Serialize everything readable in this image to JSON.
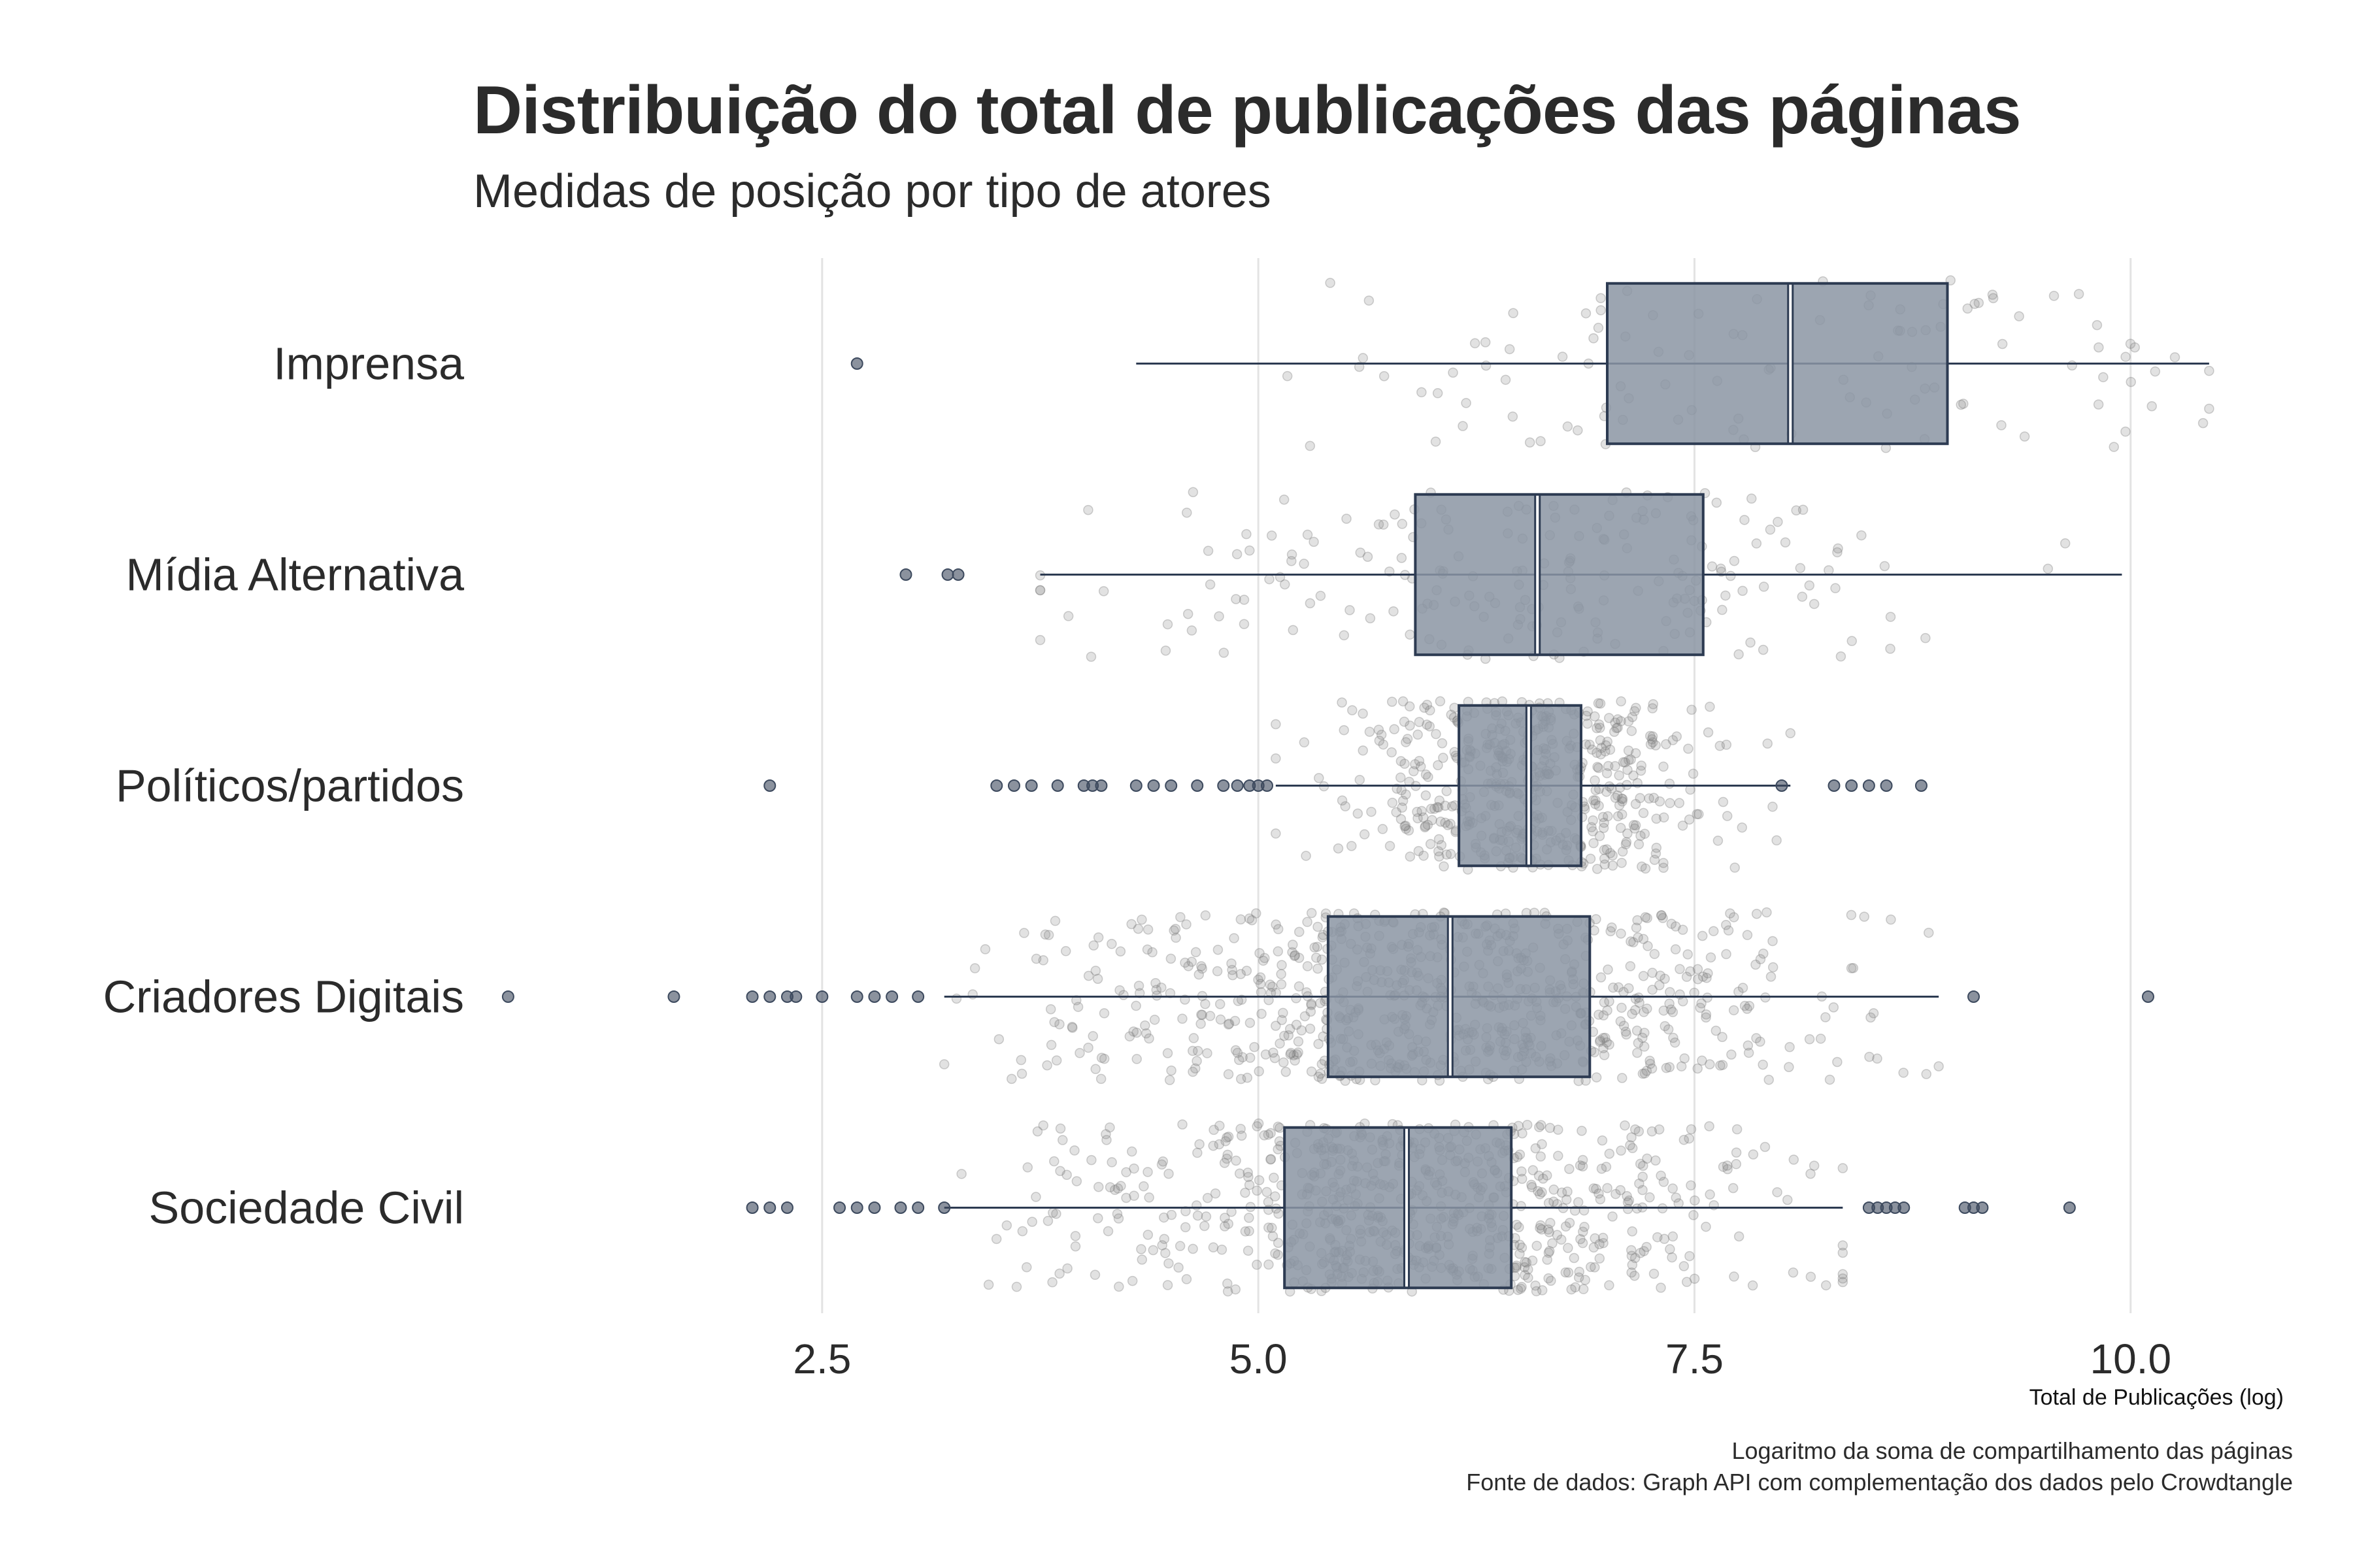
{
  "chart_data": {
    "type": "boxplot",
    "title": "Distribuição do total de publicações das páginas",
    "subtitle": "Medidas de posição por tipo de atores",
    "xlabel": "Total de Publicações (log)",
    "ylabel": "",
    "xlim": [
      0.5,
      10.9
    ],
    "x_ticks": [
      2.5,
      5.0,
      7.5,
      10.0
    ],
    "x_tick_labels": [
      "2.5",
      "5.0",
      "7.5",
      "10.0"
    ],
    "grid": "vertical",
    "orientation": "horizontal",
    "notched": true,
    "jittered_points": true,
    "categories": [
      "Imprensa",
      "Mídia Alternativa",
      "Políticos/partidos",
      "Criadores Digitais",
      "Sociedade Civil"
    ],
    "series": [
      {
        "category": "Imprensa",
        "whisker_low": 4.3,
        "q1": 7.0,
        "median": 8.05,
        "q3": 8.95,
        "whisker_high": 10.45,
        "outliers": [
          2.7
        ],
        "n_points": 110
      },
      {
        "category": "Mídia Alternativa",
        "whisker_low": 3.75,
        "q1": 5.9,
        "median": 6.6,
        "q3": 7.55,
        "whisker_high": 9.95,
        "outliers": [
          2.98,
          3.22,
          3.28
        ],
        "n_points": 200
      },
      {
        "category": "Políticos/partidos",
        "whisker_low": 5.1,
        "q1": 6.15,
        "median": 6.55,
        "q3": 6.85,
        "whisker_high": 8.05,
        "outliers": [
          2.2,
          3.5,
          3.6,
          3.7,
          3.85,
          4.0,
          4.05,
          4.1,
          4.3,
          4.4,
          4.5,
          4.65,
          4.8,
          4.88,
          4.95,
          5.0,
          5.05,
          8.0,
          8.3,
          8.4,
          8.5,
          8.6,
          8.8
        ],
        "n_points": 520
      },
      {
        "category": "Criadores Digitais",
        "whisker_low": 3.2,
        "q1": 5.4,
        "median": 6.1,
        "q3": 6.9,
        "whisker_high": 8.9,
        "outliers": [
          0.7,
          1.65,
          2.1,
          2.2,
          2.3,
          2.35,
          2.5,
          2.7,
          2.8,
          2.9,
          3.05,
          9.1,
          10.1
        ],
        "n_points": 760
      },
      {
        "category": "Sociedade Civil",
        "whisker_low": 3.2,
        "q1": 5.15,
        "median": 5.85,
        "q3": 6.45,
        "whisker_high": 8.35,
        "outliers": [
          2.1,
          2.2,
          2.3,
          2.6,
          2.7,
          2.8,
          2.95,
          3.05,
          3.2,
          8.5,
          8.55,
          8.6,
          8.65,
          8.7,
          9.05,
          9.1,
          9.15,
          9.65
        ],
        "n_points": 720
      }
    ],
    "caption": [
      "Logaritmo da soma de compartilhamento das páginas",
      "Fonte de dados: Graph API com complementação dos dados pelo Crowdtangle"
    ],
    "colors": {
      "box_fill": "#8b95a3",
      "box_stroke": "#2d3b52",
      "median": "#ffffff",
      "points": "#7a7a7a",
      "outliers": "#3d4a5e",
      "grid": "#e3e3e3",
      "text": "#2b2b2b"
    }
  }
}
